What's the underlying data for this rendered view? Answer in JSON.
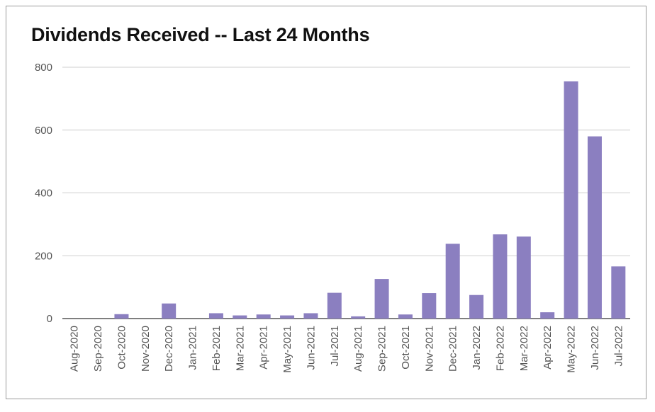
{
  "chart_data": {
    "type": "bar",
    "title": "Dividends Received -- Last 24 Months",
    "xlabel": "",
    "ylabel": "",
    "ylim": [
      0,
      800
    ],
    "yticks": [
      "0",
      "200",
      "400",
      "600",
      "800"
    ],
    "grid": true,
    "bar_color": "#8b7fc0",
    "categories": [
      "Aug-2020",
      "Sep-2020",
      "Oct-2020",
      "Nov-2020",
      "Dec-2020",
      "Jan-2021",
      "Feb-2021",
      "Mar-2021",
      "Apr-2021",
      "May-2021",
      "Jun-2021",
      "Jul-2021",
      "Aug-2021",
      "Sep-2021",
      "Oct-2021",
      "Nov-2021",
      "Dec-2021",
      "Jan-2022",
      "Feb-2022",
      "Mar-2022",
      "Apr-2022",
      "May-2022",
      "Jun-2022",
      "Jul-2022"
    ],
    "values": [
      0,
      0,
      14,
      0,
      48,
      0,
      17,
      10,
      13,
      10,
      17,
      82,
      7,
      126,
      13,
      81,
      238,
      75,
      268,
      261,
      20,
      755,
      580,
      166
    ]
  }
}
